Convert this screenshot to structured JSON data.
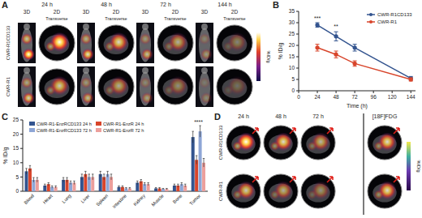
{
  "panels": {
    "A": {
      "label": "A",
      "times": [
        "24 h",
        "48 h",
        "72 h",
        "144 h"
      ],
      "view_3d": "3D",
      "view_2d": "2D",
      "transverse": "Transverse",
      "rows": [
        "CWR-R1CD133",
        "CWR-R1"
      ],
      "colorbar_label": "%ID/g"
    },
    "B": {
      "label": "B"
    },
    "C": {
      "label": "C"
    },
    "D": {
      "label": "D",
      "times": [
        "24 h",
        "48 h",
        "72 h"
      ],
      "fdg": "[18F]FDG",
      "rows": [
        "CWR-R1CD133",
        "CWR-R1"
      ],
      "colorbar_label": "%ID/g"
    }
  },
  "chart_data": [
    {
      "type": "line",
      "x_label": "Time (h)",
      "y_label": "% ID/g",
      "x": [
        24,
        48,
        72,
        144
      ],
      "xlim": [
        0,
        150
      ],
      "xticks": [
        0,
        24,
        48,
        72,
        96,
        120,
        144
      ],
      "ylim": [
        0,
        35
      ],
      "yticks": [
        0,
        5,
        10,
        15,
        20,
        25,
        30,
        35
      ],
      "legend": "upper right",
      "marker": "circle",
      "series": [
        {
          "name": "CWR-R1CD133",
          "color": "#33548f",
          "values": [
            29,
            24,
            19,
            5.5
          ],
          "errors": [
            1,
            2,
            1.5,
            0.8
          ]
        },
        {
          "name": "CWR-R1",
          "color": "#d8452b",
          "values": [
            19,
            16,
            12,
            5
          ],
          "errors": [
            1.5,
            1.5,
            1.2,
            0.7
          ]
        }
      ],
      "annotations": [
        {
          "x": 24,
          "y": 31,
          "text": "***"
        },
        {
          "x": 48,
          "y": 27.5,
          "text": "**"
        }
      ]
    },
    {
      "type": "bar",
      "y_label": "% ID/g",
      "categories": [
        "Blood",
        "Heart",
        "Lung",
        "Liver",
        "Spleen",
        "Intestine",
        "Kidney",
        "Muscle",
        "Bone",
        "Tumor"
      ],
      "ylim": [
        0,
        25
      ],
      "yticks": [
        0,
        5,
        10,
        15,
        20,
        25
      ],
      "legend": "upper left",
      "series": [
        {
          "name": "CWR-R1-EnzRCD133 24 h",
          "color": "#33548f",
          "values": [
            7,
            2,
            4,
            5,
            6,
            1.5,
            3,
            1,
            2,
            19
          ],
          "errors": [
            1,
            0.5,
            0.8,
            1,
            1,
            0.4,
            0.6,
            0.3,
            0.5,
            2
          ]
        },
        {
          "name": "CWR-R1-EnzR 24 h",
          "color": "#d8452b",
          "values": [
            8,
            2.5,
            4,
            6,
            5,
            1.5,
            3.5,
            1,
            2,
            11
          ],
          "errors": [
            1,
            0.5,
            0.8,
            1,
            1,
            0.4,
            0.6,
            0.3,
            0.5,
            1.5
          ]
        },
        {
          "name": "CWR-R1-EnzRCD133 72 h",
          "color": "#8ea6d6",
          "values": [
            4,
            1.5,
            3,
            5,
            6,
            1,
            2.5,
            0.8,
            2.5,
            21
          ],
          "errors": [
            0.8,
            0.4,
            0.6,
            1,
            1,
            0.3,
            0.5,
            0.2,
            0.5,
            2
          ]
        },
        {
          "name": "CWR-R1-EnzR 72 h",
          "color": "#ec9f9c",
          "values": [
            4,
            1.5,
            3,
            5,
            5,
            1,
            2.5,
            0.8,
            2,
            10
          ],
          "errors": [
            0.8,
            0.4,
            0.6,
            1,
            1,
            0.3,
            0.5,
            0.2,
            0.5,
            1.5
          ]
        }
      ],
      "annotations": [
        {
          "category": "Tumor",
          "y": 23.5,
          "text": "****"
        }
      ]
    }
  ]
}
